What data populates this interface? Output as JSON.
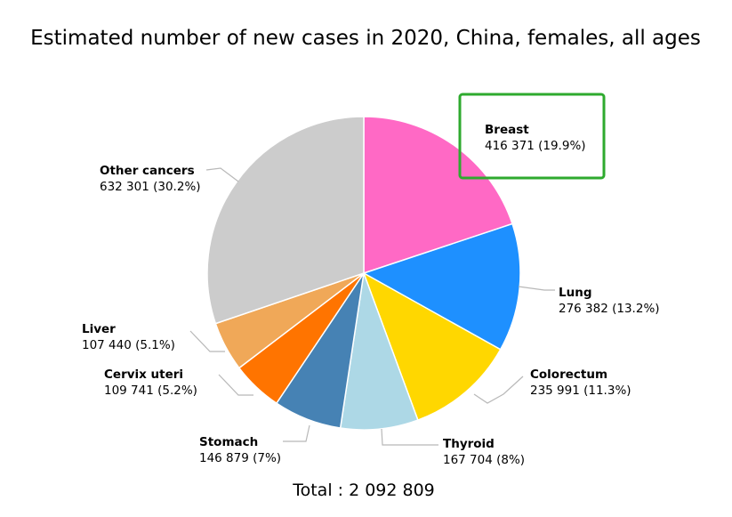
{
  "chart_data": {
    "type": "pie",
    "title": "Estimated number of new cases in 2020, China, females, all ages",
    "total_label": "Total : 2 092 809",
    "slices": [
      {
        "name": "Breast",
        "value": 416371,
        "value_label": "416 371 (19.9%)",
        "color": "#ff69c5"
      },
      {
        "name": "Lung",
        "value": 276382,
        "value_label": "276 382 (13.2%)",
        "color": "#1e90ff"
      },
      {
        "name": "Colorectum",
        "value": 235991,
        "value_label": "235 991 (11.3%)",
        "color": "#ffd700"
      },
      {
        "name": "Thyroid",
        "value": 167704,
        "value_label": "167 704 (8%)",
        "color": "#add8e6"
      },
      {
        "name": "Stomach",
        "value": 146879,
        "value_label": "146 879 (7%)",
        "color": "#4682b4"
      },
      {
        "name": "Cervix uteri",
        "value": 109741,
        "value_label": "109 741 (5.2%)",
        "color": "#ff7400"
      },
      {
        "name": "Liver",
        "value": 107440,
        "value_label": "107 440 (5.1%)",
        "color": "#f0a858"
      },
      {
        "name": "Other cancers",
        "value": 632301,
        "value_label": "632 301 (30.2%)",
        "color": "#cccccc"
      }
    ],
    "highlight": {
      "slice": "Breast",
      "color": "#2eaa2e"
    }
  }
}
